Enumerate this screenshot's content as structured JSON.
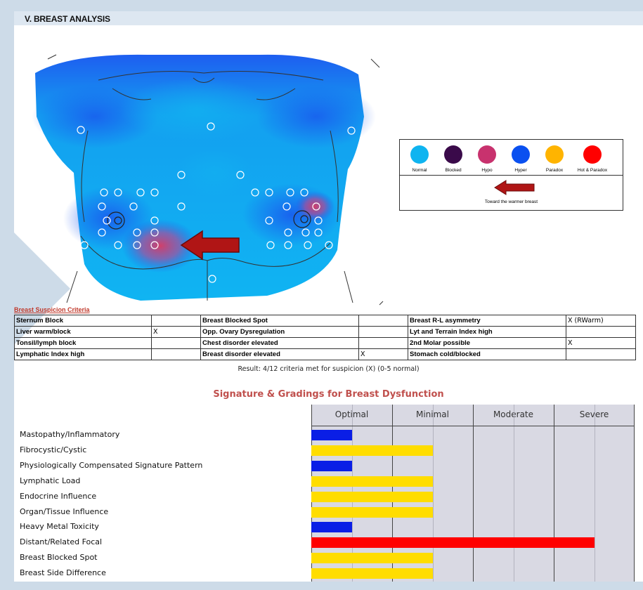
{
  "section_title": "V. BREAST ANALYSIS",
  "legend": {
    "items": [
      {
        "label": "Normal",
        "color": "#0fb4f0"
      },
      {
        "label": "Blocked",
        "color": "#3a0a4a"
      },
      {
        "label": "Hypo",
        "color": "#c8326e"
      },
      {
        "label": "Hyper",
        "color": "#0a50f0"
      },
      {
        "label": "Paradox",
        "color": "#ffb400"
      },
      {
        "label": "Hot & Paradox",
        "color": "#ff0000"
      }
    ],
    "arrow_text": "Toward the warmer breast",
    "arrow_color": "#b01515"
  },
  "criteria": {
    "title": "Breast Suspicion Criteria",
    "rows": [
      [
        {
          "label": "Sternum Block",
          "value": ""
        },
        {
          "label": "Breast Blocked Spot",
          "value": ""
        },
        {
          "label": "Breast R-L asymmetry",
          "value": "X (RWarm)"
        }
      ],
      [
        {
          "label": "Liver warm/block",
          "value": "X"
        },
        {
          "label": "Opp. Ovary Dysregulation",
          "value": ""
        },
        {
          "label": "Lyt and Terrain Index high",
          "value": ""
        }
      ],
      [
        {
          "label": "Tonsil/lymph block",
          "value": ""
        },
        {
          "label": "Chest disorder elevated",
          "value": ""
        },
        {
          "label": "2nd Molar possible",
          "value": "X"
        }
      ],
      [
        {
          "label": "Lymphatic Index high",
          "value": ""
        },
        {
          "label": "Breast disorder elevated",
          "value": "X"
        },
        {
          "label": "Stomach cold/blocked",
          "value": ""
        }
      ]
    ],
    "result": "Result: 4/12 criteria met for suspicion (X) (0-5 normal)"
  },
  "grading": {
    "title": "Signature & Gradings for Breast Dysfunction",
    "levels": [
      "Optimal",
      "Minimal",
      "Moderate",
      "Severe"
    ],
    "colors": {
      "blue": "#0a1ee6",
      "yellow": "#ffdd00",
      "red": "#ff0000"
    },
    "rows": [
      {
        "label": "Mastopathy/Inflammatory",
        "value": 0.5,
        "color": "blue"
      },
      {
        "label": "Fibrocystic/Cystic",
        "value": 1.5,
        "color": "yellow"
      },
      {
        "label": "Physiologically Compensated Signature Pattern",
        "value": 0.5,
        "color": "blue"
      },
      {
        "label": "Lymphatic Load",
        "value": 1.5,
        "color": "yellow"
      },
      {
        "label": "Endocrine Influence",
        "value": 1.5,
        "color": "yellow"
      },
      {
        "label": "Organ/Tissue Influence",
        "value": 1.5,
        "color": "yellow"
      },
      {
        "label": "Heavy Metal Toxicity",
        "value": 0.5,
        "color": "blue"
      },
      {
        "label": "Distant/Related Focal",
        "value": 3.5,
        "color": "red"
      },
      {
        "label": "Breast Blocked Spot",
        "value": 1.5,
        "color": "yellow"
      },
      {
        "label": "Breast Side Difference",
        "value": 1.5,
        "color": "yellow"
      }
    ]
  }
}
